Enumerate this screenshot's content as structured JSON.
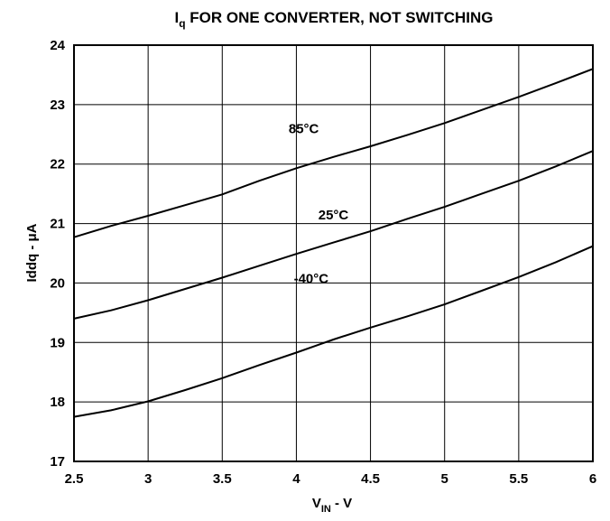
{
  "chart_data": {
    "type": "line",
    "title": {
      "main": "I",
      "sub": "q",
      "rest": " FOR ONE CONVERTER, NOT SWITCHING"
    },
    "xlabel": {
      "main": "V",
      "sub": "IN",
      "rest": " - V"
    },
    "ylabel": "Iddq - μA",
    "xlim": [
      2.5,
      6
    ],
    "ylim": [
      17,
      24
    ],
    "xticks": [
      2.5,
      3,
      3.5,
      4,
      4.5,
      5,
      5.5,
      6
    ],
    "xtick_labels": [
      "2.5",
      "3",
      "3.5",
      "4",
      "4.5",
      "5",
      "5.5",
      "6"
    ],
    "yticks": [
      17,
      18,
      19,
      20,
      21,
      22,
      23,
      24
    ],
    "ytick_labels": [
      "17",
      "18",
      "19",
      "20",
      "21",
      "22",
      "23",
      "24"
    ],
    "grid": true,
    "series": [
      {
        "label": "85°C",
        "x": [
          2.5,
          2.75,
          3.0,
          3.25,
          3.5,
          3.75,
          4.0,
          4.25,
          4.5,
          4.75,
          5.0,
          5.25,
          5.5,
          5.75,
          6.0
        ],
        "y": [
          20.77,
          20.96,
          21.13,
          21.31,
          21.49,
          21.72,
          21.93,
          22.12,
          22.3,
          22.49,
          22.69,
          22.91,
          23.13,
          23.36,
          23.6
        ],
        "label_at": {
          "x": 4.05,
          "y": 22.52
        }
      },
      {
        "label": "25°C",
        "x": [
          2.5,
          2.75,
          3.0,
          3.25,
          3.5,
          3.75,
          4.0,
          4.25,
          4.5,
          4.75,
          5.0,
          5.25,
          5.5,
          5.75,
          6.0
        ],
        "y": [
          19.4,
          19.54,
          19.71,
          19.9,
          20.09,
          20.29,
          20.49,
          20.68,
          20.87,
          21.08,
          21.28,
          21.5,
          21.72,
          21.96,
          22.22
        ],
        "label_at": {
          "x": 4.25,
          "y": 21.07
        }
      },
      {
        "label": "-40°C",
        "x": [
          2.5,
          2.75,
          3.0,
          3.25,
          3.5,
          3.75,
          4.0,
          4.25,
          4.5,
          4.75,
          5.0,
          5.25,
          5.5,
          5.75,
          6.0
        ],
        "y": [
          17.75,
          17.86,
          18.01,
          18.2,
          18.4,
          18.62,
          18.83,
          19.05,
          19.25,
          19.44,
          19.64,
          19.87,
          20.1,
          20.35,
          20.62
        ],
        "label_at": {
          "x": 4.1,
          "y": 20.0
        }
      }
    ]
  }
}
